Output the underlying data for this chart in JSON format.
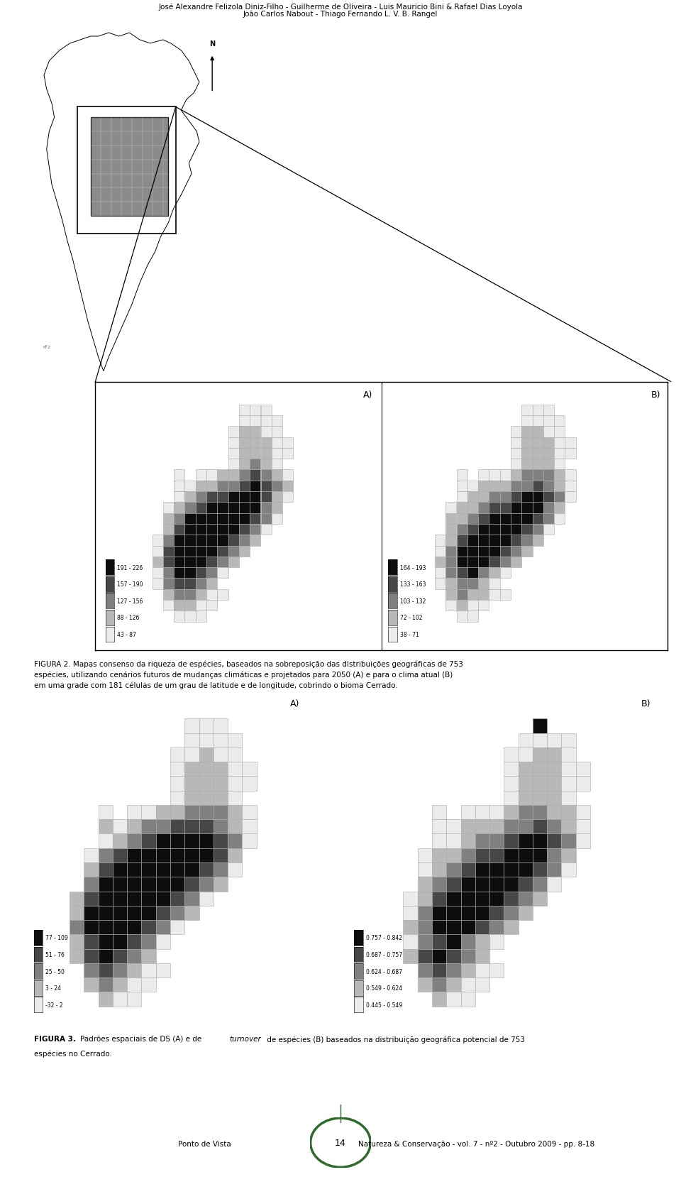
{
  "title_line1": "José Alexandre Felizola Diniz-Filho - Guilherme de Oliveira - Luis Mauricio Bini & Rafael Dias Loyola",
  "title_line2": "João Carlos Nabout - Thiago Fernando L. V. B. Rangel",
  "fig2_caption": "FIGURA 2. Mapas consenso da riqueza de espécies, baseados na sobreposição das distribuições geográficas de 753 espécies, utilizando cenários futuros de mudanças climáticas e projetados para 2050 (A) e para o clima atual (B) em uma grade com 181 células de um grau de latitude e de longitude, cobrindo o bioma Cerrado.",
  "fig3_caption_bold": "FIGURA 3.",
  "fig3_caption_rest": " Padrões espaciais de DS (A) e de ",
  "fig3_caption_italic": "turnover",
  "fig3_caption_end": " de espécies (B) baseados na distribuição geográfica potencial de 753 espécies no Cerrado.",
  "footer_left": "Ponto de Vista",
  "footer_number": "14",
  "footer_right": "Natureza & Conservação - vol. 7 - nº2 - Outubro 2009 - pp. 8-18",
  "legend_A_fig2": [
    "43 - 87",
    "88 - 126",
    "127 - 156",
    "157 - 190",
    "191 - 226"
  ],
  "legend_B_fig2": [
    "38 - 71",
    "72 - 102",
    "103 - 132",
    "133 - 163",
    "164 - 193"
  ],
  "legend_A_fig3": [
    "-32 - 2",
    "3 - 24",
    "25 - 50",
    "51 - 76",
    "77 - 109"
  ],
  "legend_B_fig3": [
    "0.445 - 0.549",
    "0.549 - 0.624",
    "0.624 - 0.687",
    "0.687 - 0.757",
    "0.757 - 0.842"
  ],
  "gray_levels": [
    0.92,
    0.72,
    0.5,
    0.28,
    0.05
  ],
  "background_color": "#ffffff",
  "border_color": "#000000",
  "green_color": "#2d6a2d"
}
